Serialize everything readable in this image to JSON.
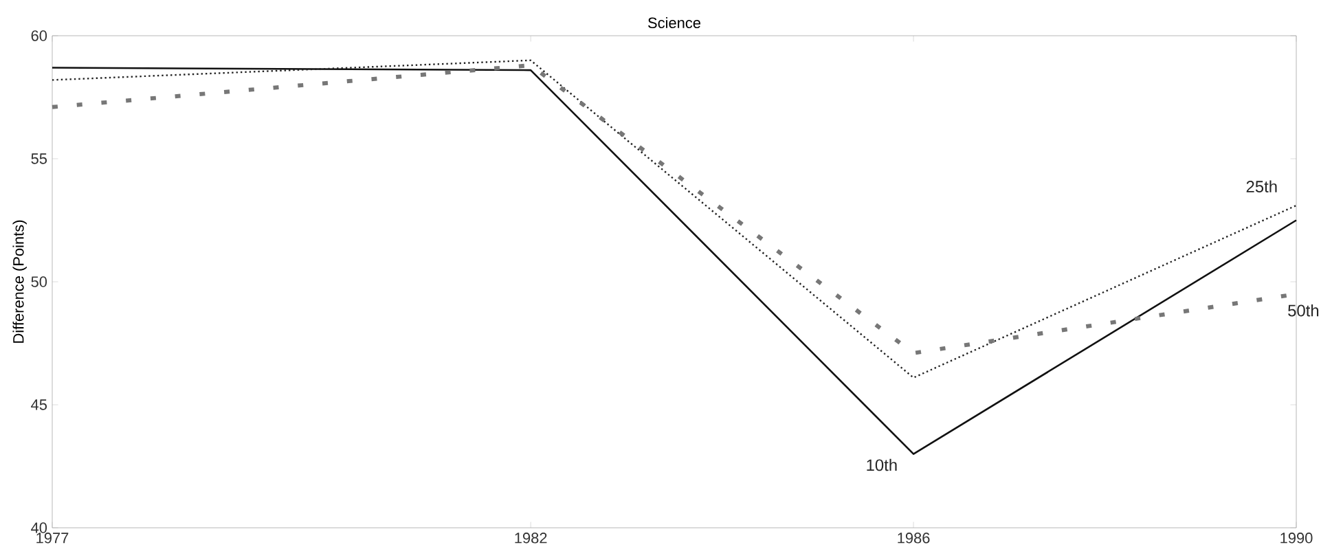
{
  "chart_data": {
    "type": "line",
    "title": "Science",
    "ylabel": "Difference (Points)",
    "x": [
      1977,
      1982,
      1986,
      1990
    ],
    "xlim": [
      1977,
      1990
    ],
    "xticks": [
      1977,
      1982,
      1986,
      1990
    ],
    "ylim": [
      40,
      60
    ],
    "yticks": [
      40,
      45,
      50,
      55,
      60
    ],
    "grid": false,
    "marker": "none",
    "series": [
      {
        "name": "10th",
        "color": "#111111",
        "line_style": "solid",
        "values": [
          58.7,
          58.6,
          43.0,
          52.5
        ]
      },
      {
        "name": "25th",
        "color": "#222222",
        "line_style": "dotted",
        "values": [
          58.2,
          59.0,
          46.1,
          53.1
        ]
      },
      {
        "name": "50th",
        "color": "#777777",
        "line_style": "dashed",
        "values": [
          57.1,
          58.8,
          47.1,
          49.5
        ]
      }
    ]
  }
}
